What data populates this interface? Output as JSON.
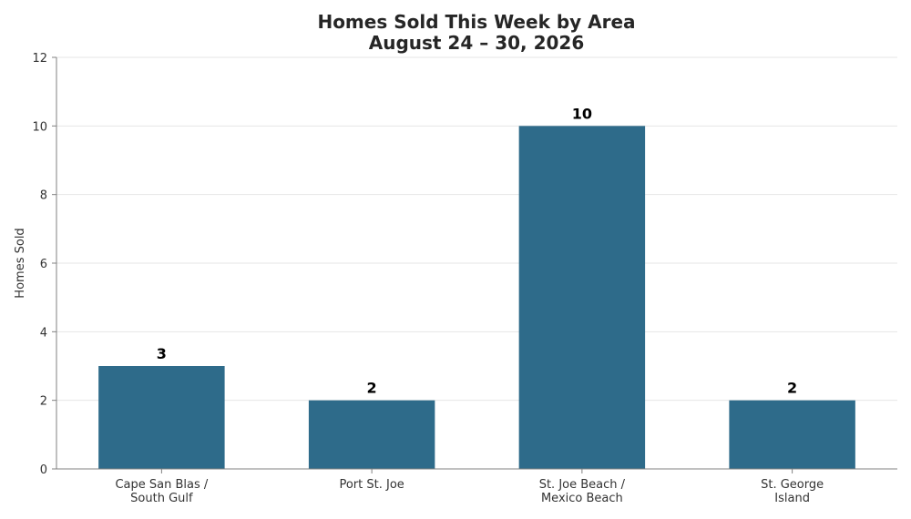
{
  "chart_data": {
    "type": "bar",
    "title_lines": [
      "Homes Sold This Week by Area",
      "August 24 – 30, 2026"
    ],
    "xlabel": "",
    "ylabel": "Homes Sold",
    "categories": [
      [
        "Cape San Blas /",
        "South Gulf"
      ],
      [
        "Port St. Joe"
      ],
      [
        "St. Joe Beach /",
        "Mexico Beach"
      ],
      [
        "St. George",
        "Island"
      ]
    ],
    "values": [
      3,
      2,
      10,
      2
    ],
    "data_labels": [
      "3",
      "2",
      "10",
      "2"
    ],
    "ylim": [
      0,
      12
    ],
    "yticks": [
      0,
      2,
      4,
      6,
      8,
      10,
      12
    ],
    "ytick_labels": [
      "0",
      "2",
      "4",
      "6",
      "8",
      "10",
      "12"
    ],
    "grid": "horizontal",
    "legend": "none",
    "colors": {
      "bar": "#2e6b8a",
      "grid": "#e6e6e6",
      "axis": "#808080"
    }
  }
}
